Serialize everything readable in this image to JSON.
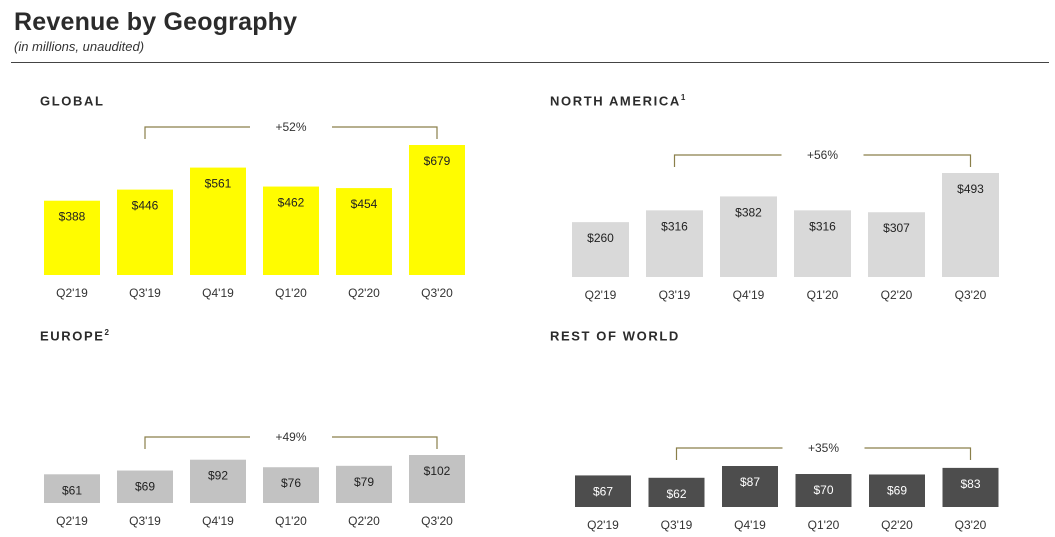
{
  "header": {
    "title": "Revenue by Geography",
    "subtitle": "(in millions, unaudited)"
  },
  "panels": [
    {
      "id": "global",
      "title": "GLOBAL",
      "footnote": "",
      "change_label": "+52%"
    },
    {
      "id": "north-america",
      "title": "NORTH AMERICA",
      "footnote": "1",
      "change_label": "+56%"
    },
    {
      "id": "europe",
      "title": "EUROPE",
      "footnote": "2",
      "change_label": "+49%"
    },
    {
      "id": "rest-of-world",
      "title": "REST OF WORLD",
      "footnote": "",
      "change_label": "+35%"
    }
  ],
  "chart_data": [
    {
      "type": "bar",
      "title": "GLOBAL",
      "categories": [
        "Q2'19",
        "Q3'19",
        "Q4'19",
        "Q1'20",
        "Q2'20",
        "Q3'20"
      ],
      "values": [
        388,
        446,
        561,
        462,
        454,
        679
      ],
      "data_labels": [
        "$388",
        "$446",
        "$561",
        "$462",
        "$454",
        "$679"
      ],
      "annotation": {
        "text": "+52%",
        "from": "Q3'19",
        "to": "Q3'20"
      },
      "bar_color": "#fffc00",
      "label_color": "#222222"
    },
    {
      "type": "bar",
      "title": "NORTH AMERICA",
      "categories": [
        "Q2'19",
        "Q3'19",
        "Q4'19",
        "Q1'20",
        "Q2'20",
        "Q3'20"
      ],
      "values": [
        260,
        316,
        382,
        316,
        307,
        493
      ],
      "data_labels": [
        "$260",
        "$316",
        "$382",
        "$316",
        "$307",
        "$493"
      ],
      "annotation": {
        "text": "+56%",
        "from": "Q3'19",
        "to": "Q3'20"
      },
      "bar_color": "#d9d9d9",
      "label_color": "#222222"
    },
    {
      "type": "bar",
      "title": "EUROPE",
      "categories": [
        "Q2'19",
        "Q3'19",
        "Q4'19",
        "Q1'20",
        "Q2'20",
        "Q3'20"
      ],
      "values": [
        61,
        69,
        92,
        76,
        79,
        102
      ],
      "data_labels": [
        "$61",
        "$69",
        "$92",
        "$76",
        "$79",
        "$102"
      ],
      "annotation": {
        "text": "+49%",
        "from": "Q3'19",
        "to": "Q3'20"
      },
      "bar_color": "#c2c2c2",
      "label_color": "#222222"
    },
    {
      "type": "bar",
      "title": "REST OF WORLD",
      "categories": [
        "Q2'19",
        "Q3'19",
        "Q4'19",
        "Q1'20",
        "Q2'20",
        "Q3'20"
      ],
      "values": [
        67,
        62,
        87,
        70,
        69,
        83
      ],
      "data_labels": [
        "$67",
        "$62",
        "$87",
        "$70",
        "$69",
        "$83"
      ],
      "annotation": {
        "text": "+35%",
        "from": "Q3'19",
        "to": "Q3'20"
      },
      "bar_color": "#4d4d4d",
      "label_color": "#ffffff"
    }
  ],
  "colors": {
    "bracket": "#8a7f4a",
    "axis_text": "#333333",
    "rule": "#444444"
  }
}
